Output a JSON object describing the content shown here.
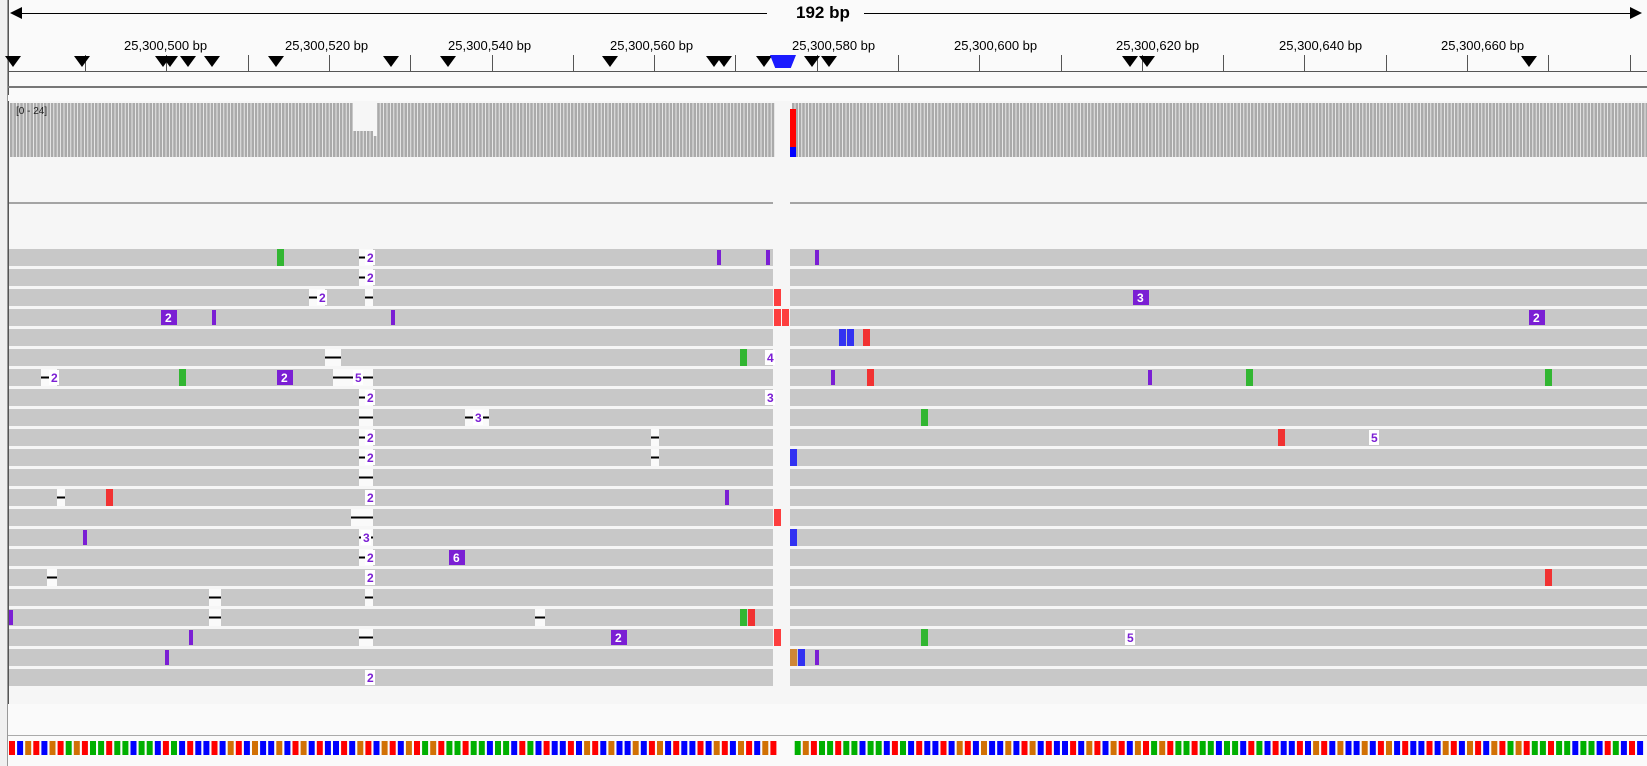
{
  "ruler": {
    "span_label": "192 bp",
    "ticks": [
      "25,300,500 bp",
      "25,300,520 bp",
      "25,300,540 bp",
      "25,300,560 bp",
      "25,300,580 bp",
      "25,300,600 bp",
      "25,300,620 bp",
      "25,300,640 bp",
      "25,300,660 bp"
    ]
  },
  "coverage": {
    "range_label": "[0 - 24]"
  },
  "insertion_labels": [
    "2",
    "3",
    "4",
    "5",
    "6"
  ],
  "colors": {
    "read": "#c8c8c8",
    "coverage": "#aaaaaa",
    "insertion": "#7b1fd4",
    "base_A": "#00b000",
    "base_C": "#0000ff",
    "base_G": "#d17105",
    "base_T": "#ff0000"
  }
}
